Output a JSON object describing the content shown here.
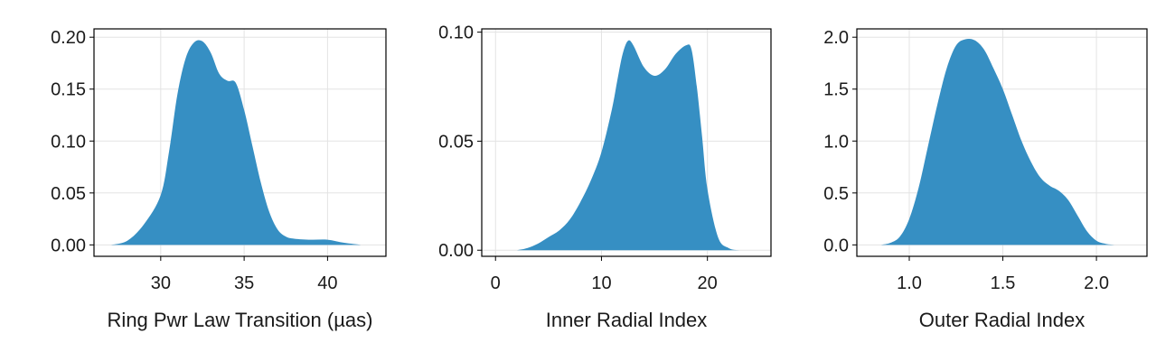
{
  "chart_data": [
    {
      "type": "area",
      "xlabel": "Ring Pwr Law Transition (µas)",
      "ylabel": "",
      "xlim": [
        26,
        43.5
      ],
      "ylim": [
        -0.011,
        0.208
      ],
      "xticks": [
        30,
        35,
        40
      ],
      "xtick_labels": [
        "30",
        "35",
        "40"
      ],
      "yticks": [
        0.0,
        0.05,
        0.1,
        0.15,
        0.2
      ],
      "ytick_labels": [
        "0.00",
        "0.05",
        "0.10",
        "0.15",
        "0.20"
      ],
      "grid": true,
      "color": "#368fc3",
      "x": [
        27,
        28,
        29,
        30,
        30.5,
        31,
        31.5,
        32,
        32.5,
        33,
        33.5,
        34,
        34.5,
        35,
        35.5,
        36,
        36.5,
        37,
        37.5,
        38,
        39,
        40,
        41,
        42
      ],
      "y": [
        0.0,
        0.004,
        0.02,
        0.048,
        0.09,
        0.145,
        0.18,
        0.195,
        0.196,
        0.185,
        0.165,
        0.158,
        0.156,
        0.13,
        0.095,
        0.06,
        0.032,
        0.015,
        0.008,
        0.006,
        0.005,
        0.005,
        0.002,
        0.0
      ]
    },
    {
      "type": "area",
      "xlabel": "Inner Radial Index",
      "ylabel": "",
      "xlim": [
        -1.3,
        26
      ],
      "ylim": [
        -0.0028,
        0.1015
      ],
      "xticks": [
        0,
        10,
        20
      ],
      "xtick_labels": [
        "0",
        "10",
        "20"
      ],
      "yticks": [
        0.0,
        0.05,
        0.1
      ],
      "ytick_labels": [
        "0.00",
        "0.05",
        "0.10"
      ],
      "grid": true,
      "color": "#368fc3",
      "x": [
        2,
        3,
        4,
        5,
        6,
        7,
        8,
        9,
        10,
        11,
        11.5,
        12,
        12.5,
        13,
        14,
        15,
        16,
        17,
        18,
        18.5,
        19,
        19.5,
        20,
        21,
        22,
        23
      ],
      "y": [
        0.0,
        0.001,
        0.003,
        0.006,
        0.009,
        0.014,
        0.022,
        0.032,
        0.045,
        0.065,
        0.078,
        0.09,
        0.096,
        0.094,
        0.084,
        0.08,
        0.083,
        0.09,
        0.094,
        0.092,
        0.075,
        0.052,
        0.028,
        0.006,
        0.001,
        0.0
      ]
    },
    {
      "type": "area",
      "xlabel": "Outer Radial Index",
      "ylabel": "",
      "xlim": [
        0.72,
        2.27
      ],
      "ylim": [
        -0.11,
        2.08
      ],
      "xticks": [
        1.0,
        1.5,
        2.0
      ],
      "xtick_labels": [
        "1.0",
        "1.5",
        "2.0"
      ],
      "yticks": [
        0.0,
        0.5,
        1.0,
        1.5,
        2.0
      ],
      "ytick_labels": [
        "0.0",
        "0.5",
        "1.0",
        "1.5",
        "2.0"
      ],
      "grid": true,
      "color": "#368fc3",
      "x": [
        0.85,
        0.9,
        0.95,
        1.0,
        1.05,
        1.1,
        1.15,
        1.2,
        1.25,
        1.3,
        1.35,
        1.4,
        1.45,
        1.5,
        1.55,
        1.6,
        1.65,
        1.7,
        1.75,
        1.8,
        1.85,
        1.9,
        1.95,
        2.0,
        2.05,
        2.1
      ],
      "y": [
        0.0,
        0.02,
        0.08,
        0.25,
        0.55,
        0.95,
        1.35,
        1.7,
        1.92,
        1.98,
        1.97,
        1.88,
        1.7,
        1.5,
        1.25,
        1.0,
        0.8,
        0.65,
        0.57,
        0.52,
        0.43,
        0.28,
        0.13,
        0.04,
        0.01,
        0.0
      ]
    }
  ]
}
